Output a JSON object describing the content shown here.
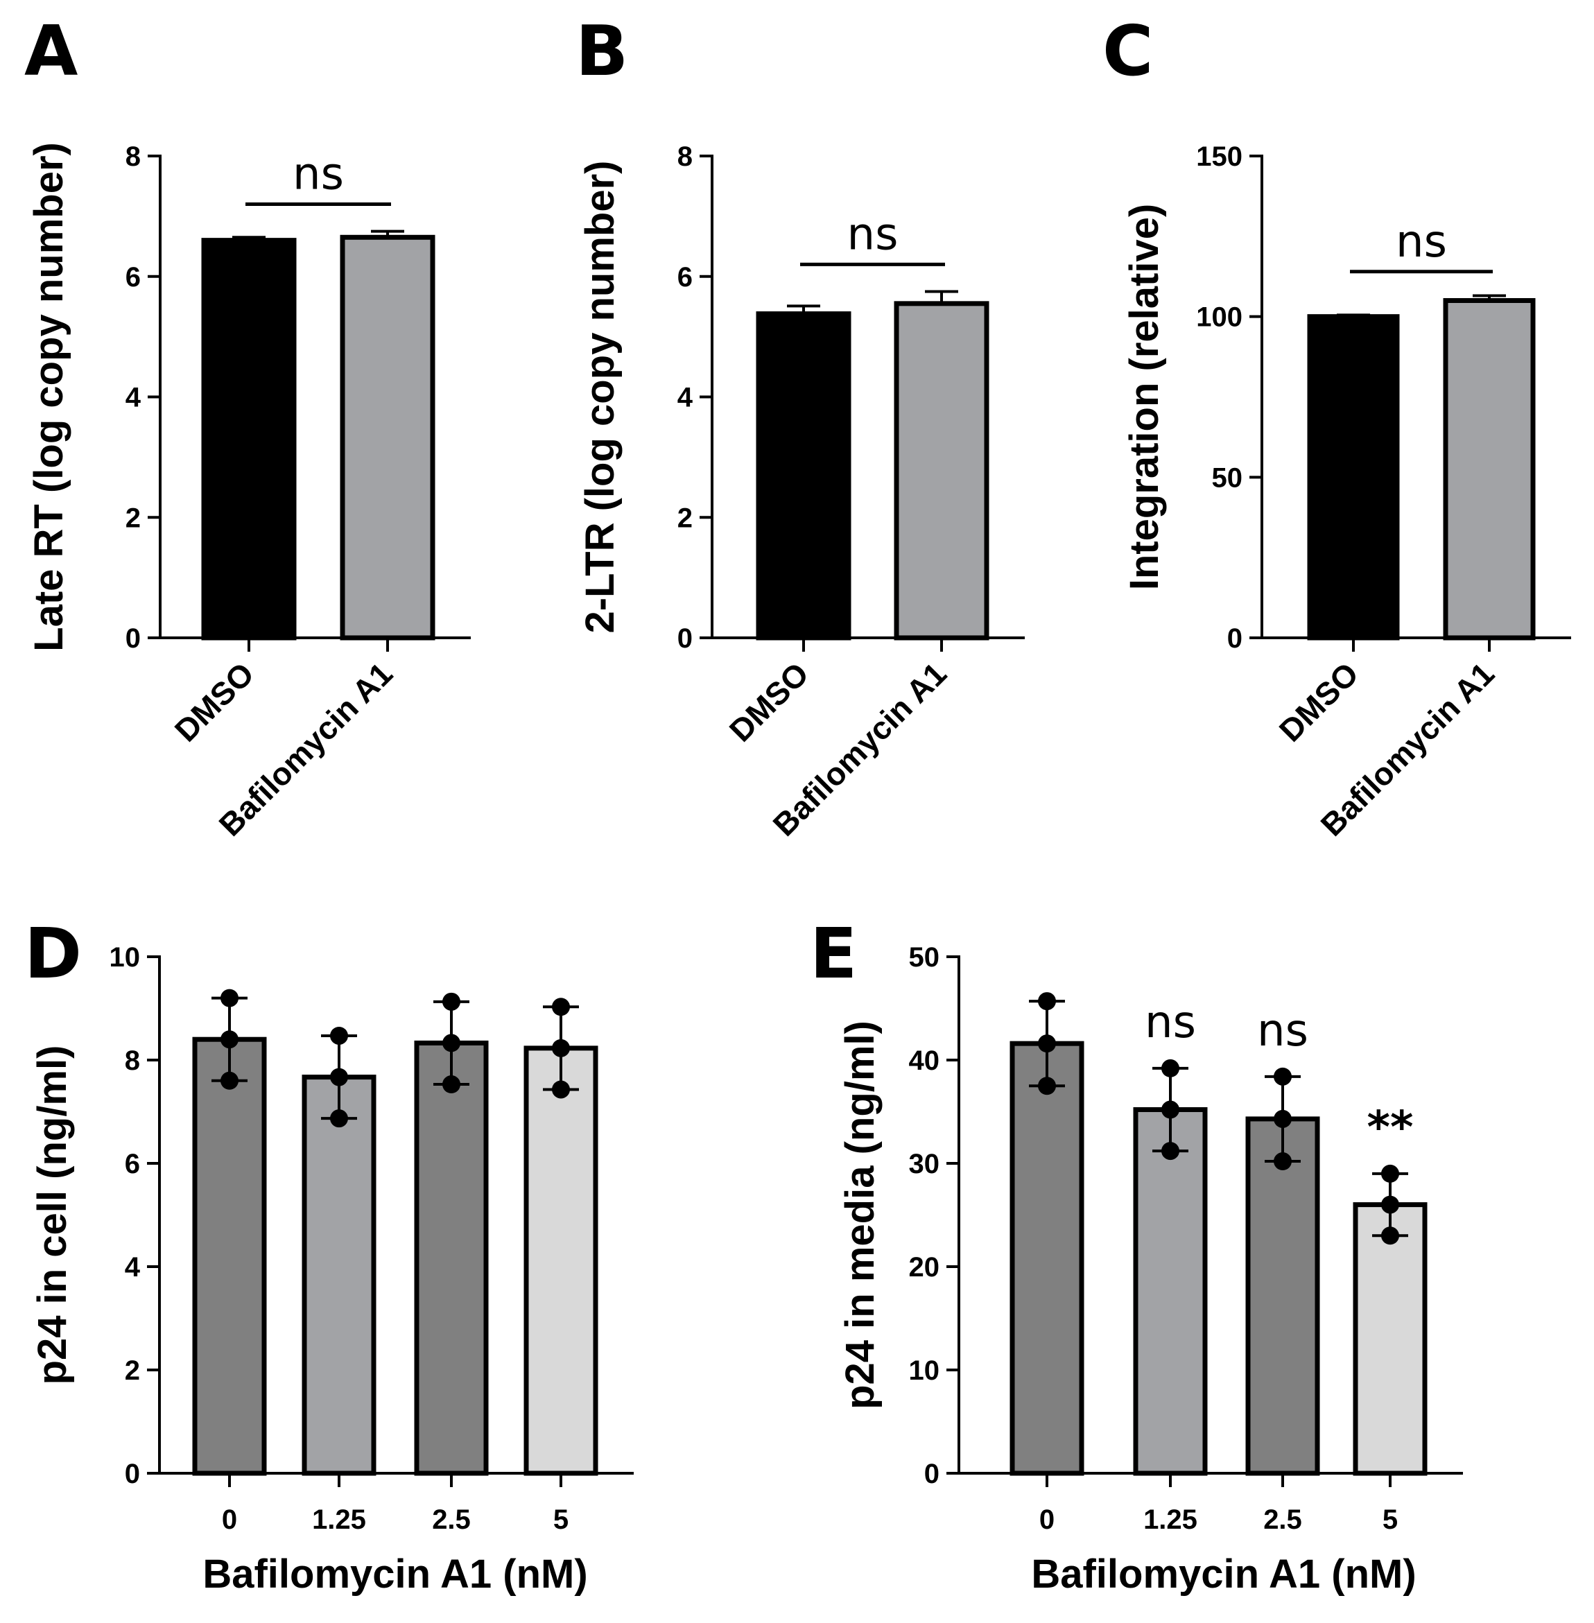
{
  "chart_data": [
    {
      "panel": "A",
      "type": "bar",
      "categories": [
        "DMSO",
        "Bafilomycin A1"
      ],
      "values": [
        6.6,
        6.65
      ],
      "errors": [
        0.05,
        0.1
      ],
      "colors": [
        "#000000",
        "#a2a3a6"
      ],
      "ylabel": "Late RT (log copy number)",
      "xlabel": "",
      "ylim": [
        0,
        8
      ],
      "yticks": [
        0,
        2,
        4,
        6,
        8
      ],
      "significance": {
        "label": "ns",
        "between": [
          0,
          1
        ],
        "y": 7.2
      }
    },
    {
      "panel": "B",
      "type": "bar",
      "categories": [
        "DMSO",
        "Bafilomycin A1"
      ],
      "values": [
        5.38,
        5.55
      ],
      "errors": [
        0.13,
        0.2
      ],
      "colors": [
        "#000000",
        "#a2a3a6"
      ],
      "ylabel": "2-LTR (log copy number)",
      "xlabel": "",
      "ylim": [
        0,
        8
      ],
      "yticks": [
        0,
        2,
        4,
        6,
        8
      ],
      "significance": {
        "label": "ns",
        "between": [
          0,
          1
        ],
        "y": 6.2
      }
    },
    {
      "panel": "C",
      "type": "bar",
      "categories": [
        "DMSO",
        "Bafilomycin A1"
      ],
      "values": [
        100,
        105
      ],
      "errors": [
        0.5,
        1.5
      ],
      "colors": [
        "#000000",
        "#a2a3a6"
      ],
      "ylabel": "Integration (relative)",
      "xlabel": "",
      "ylim": [
        0,
        150
      ],
      "yticks": [
        0,
        50,
        100,
        150
      ],
      "significance": {
        "label": "ns",
        "between": [
          0,
          1
        ],
        "y": 114
      }
    },
    {
      "panel": "D",
      "type": "bar",
      "categories": [
        "0",
        "1.25",
        "2.5",
        "5"
      ],
      "values": [
        8.4,
        7.67,
        8.33,
        8.23
      ],
      "errors": [
        0.8,
        0.8,
        0.8,
        0.8
      ],
      "points": [
        [
          9.2,
          8.4,
          7.6
        ],
        [
          8.47,
          7.67,
          6.87
        ],
        [
          9.13,
          8.33,
          7.53
        ],
        [
          9.03,
          8.23,
          7.43
        ]
      ],
      "colors": [
        "#808080",
        "#a2a3a6",
        "#808080",
        "#d9d9d9"
      ],
      "ylabel": "p24 in cell (ng/ml)",
      "xlabel": "Bafilomycin A1 (nM)",
      "ylim": [
        0,
        10
      ],
      "yticks": [
        0,
        2,
        4,
        6,
        8,
        10
      ],
      "annotations": []
    },
    {
      "panel": "E",
      "type": "bar",
      "categories": [
        "0",
        "1.25",
        "2.5",
        "5"
      ],
      "values": [
        41.6,
        35.2,
        34.3,
        26
      ],
      "errors": [
        4.1,
        4,
        4.1,
        3
      ],
      "points": [
        [
          45.7,
          41.6,
          37.5
        ],
        [
          39.2,
          35.2,
          31.2
        ],
        [
          38.4,
          34.3,
          30.2
        ],
        [
          29,
          26,
          23
        ]
      ],
      "colors": [
        "#808080",
        "#a2a3a6",
        "#808080",
        "#d9d9d9"
      ],
      "ylabel": "p24 in media (ng/ml)",
      "xlabel": "Bafilomycin A1 (nM)",
      "ylim": [
        0,
        50
      ],
      "yticks": [
        0,
        10,
        20,
        30,
        40,
        50
      ],
      "annotations": [
        "",
        "ns",
        "ns",
        "**"
      ]
    }
  ]
}
